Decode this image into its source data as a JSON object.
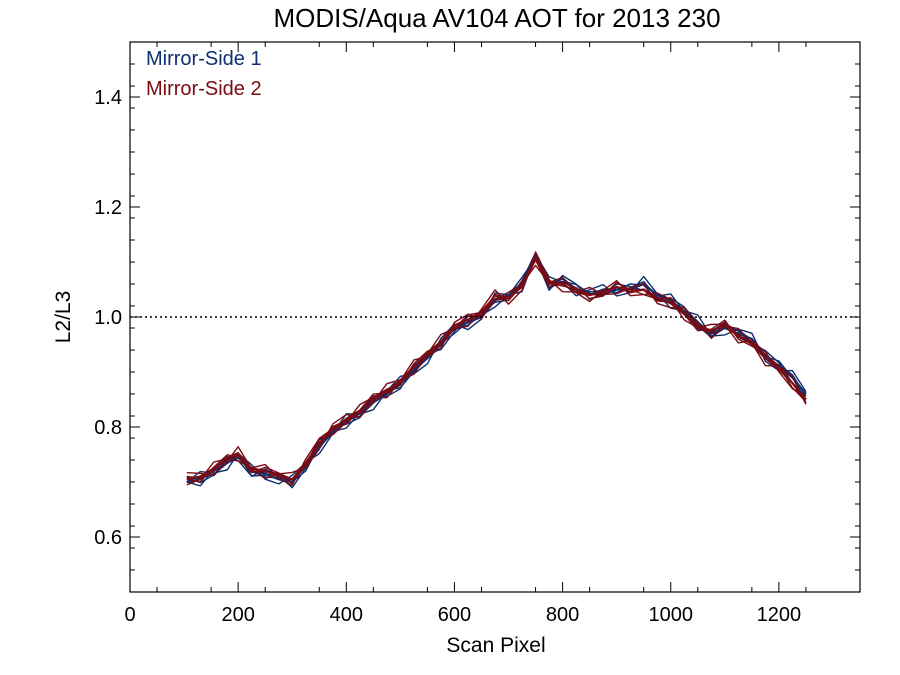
{
  "chart_data": {
    "type": "line",
    "title": "MODIS/Aqua AV104 AOT for 2013 230",
    "xlabel": "Scan Pixel",
    "ylabel": "L2/L3",
    "xlim": [
      0,
      1350
    ],
    "ylim": [
      0.5,
      1.5
    ],
    "xticks": [
      0,
      200,
      400,
      600,
      800,
      1000,
      1200
    ],
    "yticks": [
      0.6,
      0.8,
      1.0,
      1.2,
      1.4
    ],
    "xtick_labels": [
      "0",
      "200",
      "400",
      "600",
      "800",
      "1000",
      "1200"
    ],
    "ytick_labels": [
      "0.6",
      "0.8",
      "1.0",
      "1.2",
      "1.4"
    ],
    "reference_line": {
      "y": 1.0,
      "style": "dotted"
    },
    "grid": false,
    "legend_position": "top-left",
    "x": [
      105,
      130,
      155,
      180,
      200,
      225,
      250,
      275,
      300,
      325,
      350,
      375,
      400,
      425,
      450,
      475,
      500,
      525,
      550,
      575,
      600,
      625,
      650,
      675,
      700,
      725,
      750,
      775,
      800,
      825,
      850,
      875,
      900,
      925,
      950,
      975,
      1000,
      1025,
      1050,
      1075,
      1100,
      1125,
      1150,
      1175,
      1200,
      1225,
      1250
    ],
    "series": [
      {
        "name": "Mirror-Side 1",
        "color": "#0d2f6e",
        "values": [
          0.7,
          0.705,
          0.72,
          0.735,
          0.745,
          0.72,
          0.715,
          0.705,
          0.7,
          0.73,
          0.765,
          0.79,
          0.81,
          0.825,
          0.845,
          0.86,
          0.88,
          0.905,
          0.925,
          0.95,
          0.98,
          0.99,
          1.0,
          1.03,
          1.04,
          1.06,
          1.11,
          1.06,
          1.07,
          1.05,
          1.04,
          1.05,
          1.05,
          1.05,
          1.06,
          1.04,
          1.03,
          1.01,
          0.99,
          0.97,
          0.98,
          0.97,
          0.96,
          0.93,
          0.91,
          0.89,
          0.86
        ]
      },
      {
        "name": "Mirror-Side 2",
        "color": "#7a0b13",
        "values": [
          0.705,
          0.71,
          0.725,
          0.74,
          0.75,
          0.725,
          0.72,
          0.71,
          0.705,
          0.735,
          0.77,
          0.795,
          0.815,
          0.83,
          0.85,
          0.865,
          0.885,
          0.91,
          0.93,
          0.955,
          0.985,
          0.995,
          1.005,
          1.04,
          1.035,
          1.055,
          1.105,
          1.065,
          1.06,
          1.045,
          1.04,
          1.045,
          1.055,
          1.045,
          1.05,
          1.035,
          1.025,
          1.005,
          0.985,
          0.975,
          0.985,
          0.965,
          0.955,
          0.925,
          0.905,
          0.88,
          0.85
        ]
      }
    ]
  }
}
